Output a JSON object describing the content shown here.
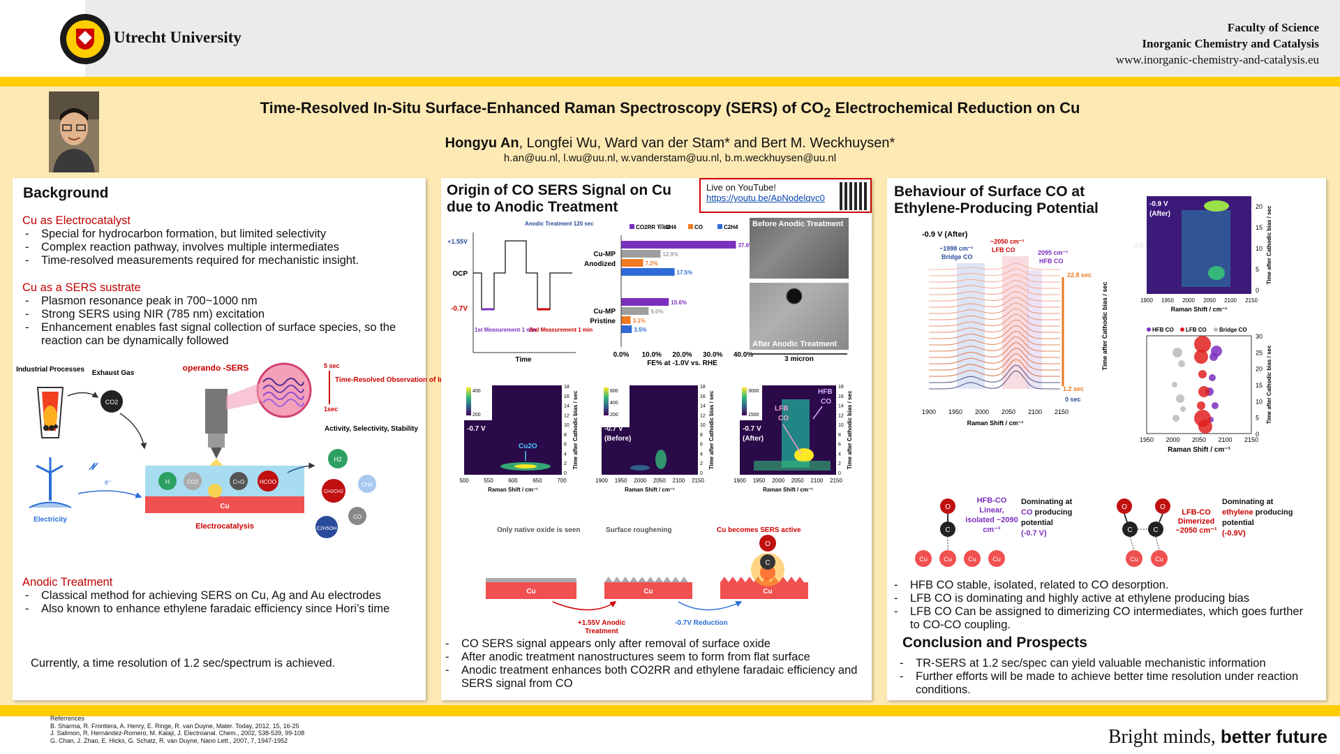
{
  "header": {
    "university": "Utrecht University",
    "faculty": "Faculty of Science",
    "department": "Inorganic Chemistry and Catalysis",
    "website": "www.inorganic-chemistry-and-catalysis.eu"
  },
  "title": {
    "main": "Time-Resolved In-Situ Surface-Enhanced Raman Spectroscopy (SERS) of CO",
    "sub": "2",
    "end": " Electrochemical Reduction on Cu"
  },
  "authors": {
    "first": "Hongyu An",
    "rest": ", Longfei Wu, Ward van der Stam* and Bert M. Weckhuysen*",
    "emails": "h.an@uu.nl,  l.wu@uu.nl, w.vanderstam@uu.nl, b.m.weckhuysen@uu.nl"
  },
  "background": {
    "heading": "Background",
    "s1_title": "Cu as Electrocatalyst",
    "s1_items": [
      "Special for hydrocarbon formation, but limited selectivity",
      "Complex reaction pathway, involves multiple intermediates",
      "Time-resolved measurements required for mechanistic insight."
    ],
    "s2_title": "Cu as a SERS sustrate",
    "s2_items": [
      "Plasmon resonance peak in 700~1000 nm",
      "Strong SERS using NIR (785 nm) excitation",
      "Enhancement enables fast signal collection of surface species, so the reaction can be dynamically followed"
    ],
    "s3_title": "Anodic Treatment",
    "s3_items": [
      "Classical method for achieving SERS on Cu, Ag and Au electrodes",
      "Also known to enhance ethylene faradaic efficiency since Hori’s time"
    ],
    "conclusion": "Currently, a time resolution of 1.2 sec/spectrum is achieved.",
    "diagram": {
      "industrial": "Industrial Processes",
      "exhaust": "Exhaust Gas",
      "co2": "CO2",
      "operando": "operando -SERS",
      "t5": "5 sec",
      "t1": "1sec",
      "tr": "Time-Resolved Observation of Intermediates",
      "avs": "Activity, Selectivity, Stability",
      "h": "H",
      "co2ads": "CO2",
      "co": "C=O",
      "hcoo": "HCOO",
      "cu": "Cu",
      "electrocat": "Electrocatalysis",
      "electricity": "Electricity",
      "eminus": "e⁻",
      "h2": "H2",
      "ch2ch2": "CH2CH2",
      "ch4": "CH4",
      "c2h5oh": "C2H5OH",
      "coprod": "CO"
    }
  },
  "origin": {
    "heading": "Origin of CO SERS Signal on Cu due to Anodic Treatment",
    "live_label": "Live on YouTube!",
    "live_url": "https://youtu.be/ApNodelqyc0",
    "protocol": {
      "v_anodic": "+1.55V",
      "ocp": "OCP",
      "v_cathodic": "-0.7V",
      "anodic_label": "Anodic Treatment 120 sec",
      "m1": "1st Measurement 1 min",
      "m2": "2nd Measurement 1 min",
      "xlabel": "Time"
    },
    "fe_chart": {
      "legend": [
        "CO2RR Total",
        "CH4",
        "CO",
        "C2H4"
      ],
      "colors": [
        "#7b2fbe",
        "#9e9e9e",
        "#f07a20",
        "#2f6bd6"
      ],
      "groups": [
        {
          "name": "Cu-MP Anodized",
          "values": [
            37.6,
            12.9,
            7.2,
            17.5
          ],
          "labels": [
            "37.6%",
            "12.9%",
            "7.2%",
            "17.5%"
          ]
        },
        {
          "name": "Cu-MP Pristine",
          "values": [
            15.6,
            9.0,
            3.1,
            3.5
          ],
          "labels": [
            "15.6%",
            "9.0%",
            "3.1%",
            "3.5%"
          ]
        }
      ],
      "ticks": [
        "0.0%",
        "10.0%",
        "20.0%",
        "30.0%",
        "40.0%"
      ],
      "xmax": 40,
      "xlabel": "FE% at -1.0V vs. RHE"
    },
    "sem": {
      "before": "Before Anodic Treatment",
      "after": "After Anodic Treatment",
      "scale": "3 micron"
    },
    "heatmaps": [
      {
        "scale": [
          "400",
          "200"
        ],
        "label": "-0.7 V",
        "annot": "Cu2O",
        "xticks": [
          "500",
          "550",
          "600",
          "650",
          "700"
        ]
      },
      {
        "scale": [
          "600",
          "400",
          "200"
        ],
        "label": "-0.7 V (Before)",
        "xticks": [
          "1900",
          "1950",
          "2000",
          "2050",
          "2100",
          "2150"
        ]
      },
      {
        "scale": [
          "3000",
          "1500"
        ],
        "label": "-0.7 V (After)",
        "annot1": "LFB CO",
        "annot2": "HFB CO",
        "xticks": [
          "1900",
          "1950",
          "2000",
          "2050",
          "2100",
          "2150"
        ]
      }
    ],
    "heat_ylabel": "Time after Cathodic bias / sec",
    "heat_xlabel": "Raman Shift / cm⁻¹",
    "heat_yticks": [
      "18",
      "16",
      "14",
      "12",
      "10",
      "8",
      "6",
      "4",
      "2",
      "0"
    ],
    "surface": {
      "native": "Only native oxide is seen",
      "rough": "Surface roughening",
      "active": "Cu becomes SERS active",
      "cu": "Cu",
      "anodic": "+1.55V Anodic Treatment",
      "reduction": "-0.7V Reduction",
      "o": "O",
      "c": "C"
    },
    "items": [
      "CO SERS signal appears only after removal of surface oxide",
      "After anodic treatment nanostructures seem to form from flat surface",
      "Anodic treatment enhances both CO2RR and ethylene faradaic efficiency and SERS signal from CO"
    ]
  },
  "behaviour": {
    "heading": "Behaviour of Surface CO at Ethylene-Producing Potential",
    "waterfall": {
      "title": "-0.9 V (After)",
      "bridge": "~1998 cm⁻¹ Bridge CO",
      "lfb": "~2050 cm⁻¹ LFB CO",
      "hfb": "2095 cm⁻¹ HFB CO",
      "top": "22.8 sec",
      "mid": "1.2 sec",
      "zero": "0 sec",
      "ylabel": "Time after Cathodic bias / sec",
      "xlabel": "Raman Shift / cm⁻¹",
      "xticks": [
        "1900",
        "1950",
        "2000",
        "2050",
        "2100",
        "2150"
      ]
    },
    "heat": {
      "label": "-0.9 V (After)",
      "ghost": "-0.9 V (After)",
      "yticks": [
        "20",
        "15",
        "10",
        "5",
        "0"
      ],
      "xticks": [
        "1900",
        "1950",
        "2000",
        "2050",
        "2100",
        "2150"
      ],
      "xlabel": "Raman Shift / cm⁻¹",
      "ylabel": "Time after Cathodic bias / sec"
    },
    "bubble": {
      "legend": [
        "HFB CO",
        "LFB CO",
        "Bridge CO"
      ],
      "yticks": [
        "30",
        "25",
        "20",
        "15",
        "10",
        "5",
        "0"
      ],
      "xticks": [
        "1950",
        "2000",
        "2050",
        "2100",
        "2150"
      ],
      "xlabel": "Raman Shift / cm⁻¹",
      "ylabel": "Time after Cathodic bias / sec"
    },
    "schemes": {
      "hfb_name": "HFB-CO Linear, isolated ~2090 cm⁻¹",
      "hfb_dom1": "Dominating at",
      "hfb_dom2": "CO",
      "hfb_dom3": " producing potential",
      "hfb_pot": "(-0.7 V)",
      "lfb_name": "LFB-CO Dimerized ~2050 cm⁻¹",
      "lfb_dom1": "Dominating at",
      "lfb_dom2": "ethylene",
      "lfb_dom3": " producing potential",
      "lfb_pot": "(-0.9V)",
      "o": "O",
      "c": "C",
      "cu": "Cu"
    },
    "items": [
      "HFB CO stable, isolated, related to CO desorption.",
      "LFB CO is dominating and highly active at ethylene producing bias",
      "LFB CO Can be assigned to dimerizing CO intermediates, which goes further to CO-CO coupling."
    ],
    "conclusion_heading": "Conclusion and Prospects",
    "conclusion_items": [
      "TR-SERS at 1.2 sec/spec can yield valuable mechanistic information",
      "Further efforts will be made to achieve better time resolution under reaction conditions."
    ]
  },
  "footer": {
    "refs_title": "Referrences",
    "refs": [
      "B. Sharma, R. Frontiera, A. Henry, E. Ringe, R. van Duyne, Mater. Today, 2012, 15, 16-25",
      "J. Salimon, R. Hernández-Romero, M. Kalaji, J. Electroanal. Chem., 2002, 538-539, 99-108",
      "G. Chan, J. Zhao, E. Hicks, G. Schatz, R. van Duyne, Nano Lett., 2007, 7, 1947-1952"
    ],
    "slogan1": "Bright minds, ",
    "slogan2": "better future"
  }
}
